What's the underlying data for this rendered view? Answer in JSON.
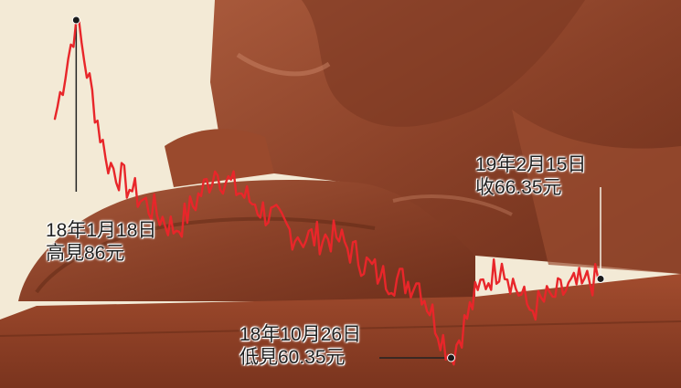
{
  "chart_data": {
    "type": "line",
    "series": [
      {
        "color": "#e8262a",
        "x": [
          "2018-01-02",
          "2018-01-18",
          "2018-02-09",
          "2018-03-01",
          "2018-04-03",
          "2018-05-02",
          "2018-06-01",
          "2018-07-03",
          "2018-08-01",
          "2018-09-03",
          "2018-10-02",
          "2018-10-26",
          "2018-11-15",
          "2018-12-03",
          "2018-12-24",
          "2019-01-10",
          "2019-02-01",
          "2019-02-15"
        ],
        "values": [
          78.5,
          86.0,
          75.5,
          73.0,
          70.0,
          74.5,
          72.0,
          69.5,
          69.5,
          66.5,
          66.0,
          60.35,
          65.5,
          67.5,
          64.0,
          65.0,
          66.0,
          66.35
        ]
      }
    ],
    "annotations": [
      {
        "date": "2018-01-18",
        "value": 86.0,
        "line1": "18年1月18日",
        "line2": "高見86元"
      },
      {
        "date": "2018-10-26",
        "value": 60.35,
        "line1": "18年10月26日",
        "line2": "低見60.35元"
      },
      {
        "date": "2019-02-15",
        "value": 66.35,
        "line1": "19年2月15日",
        "line2": "收66.35元"
      }
    ]
  }
}
